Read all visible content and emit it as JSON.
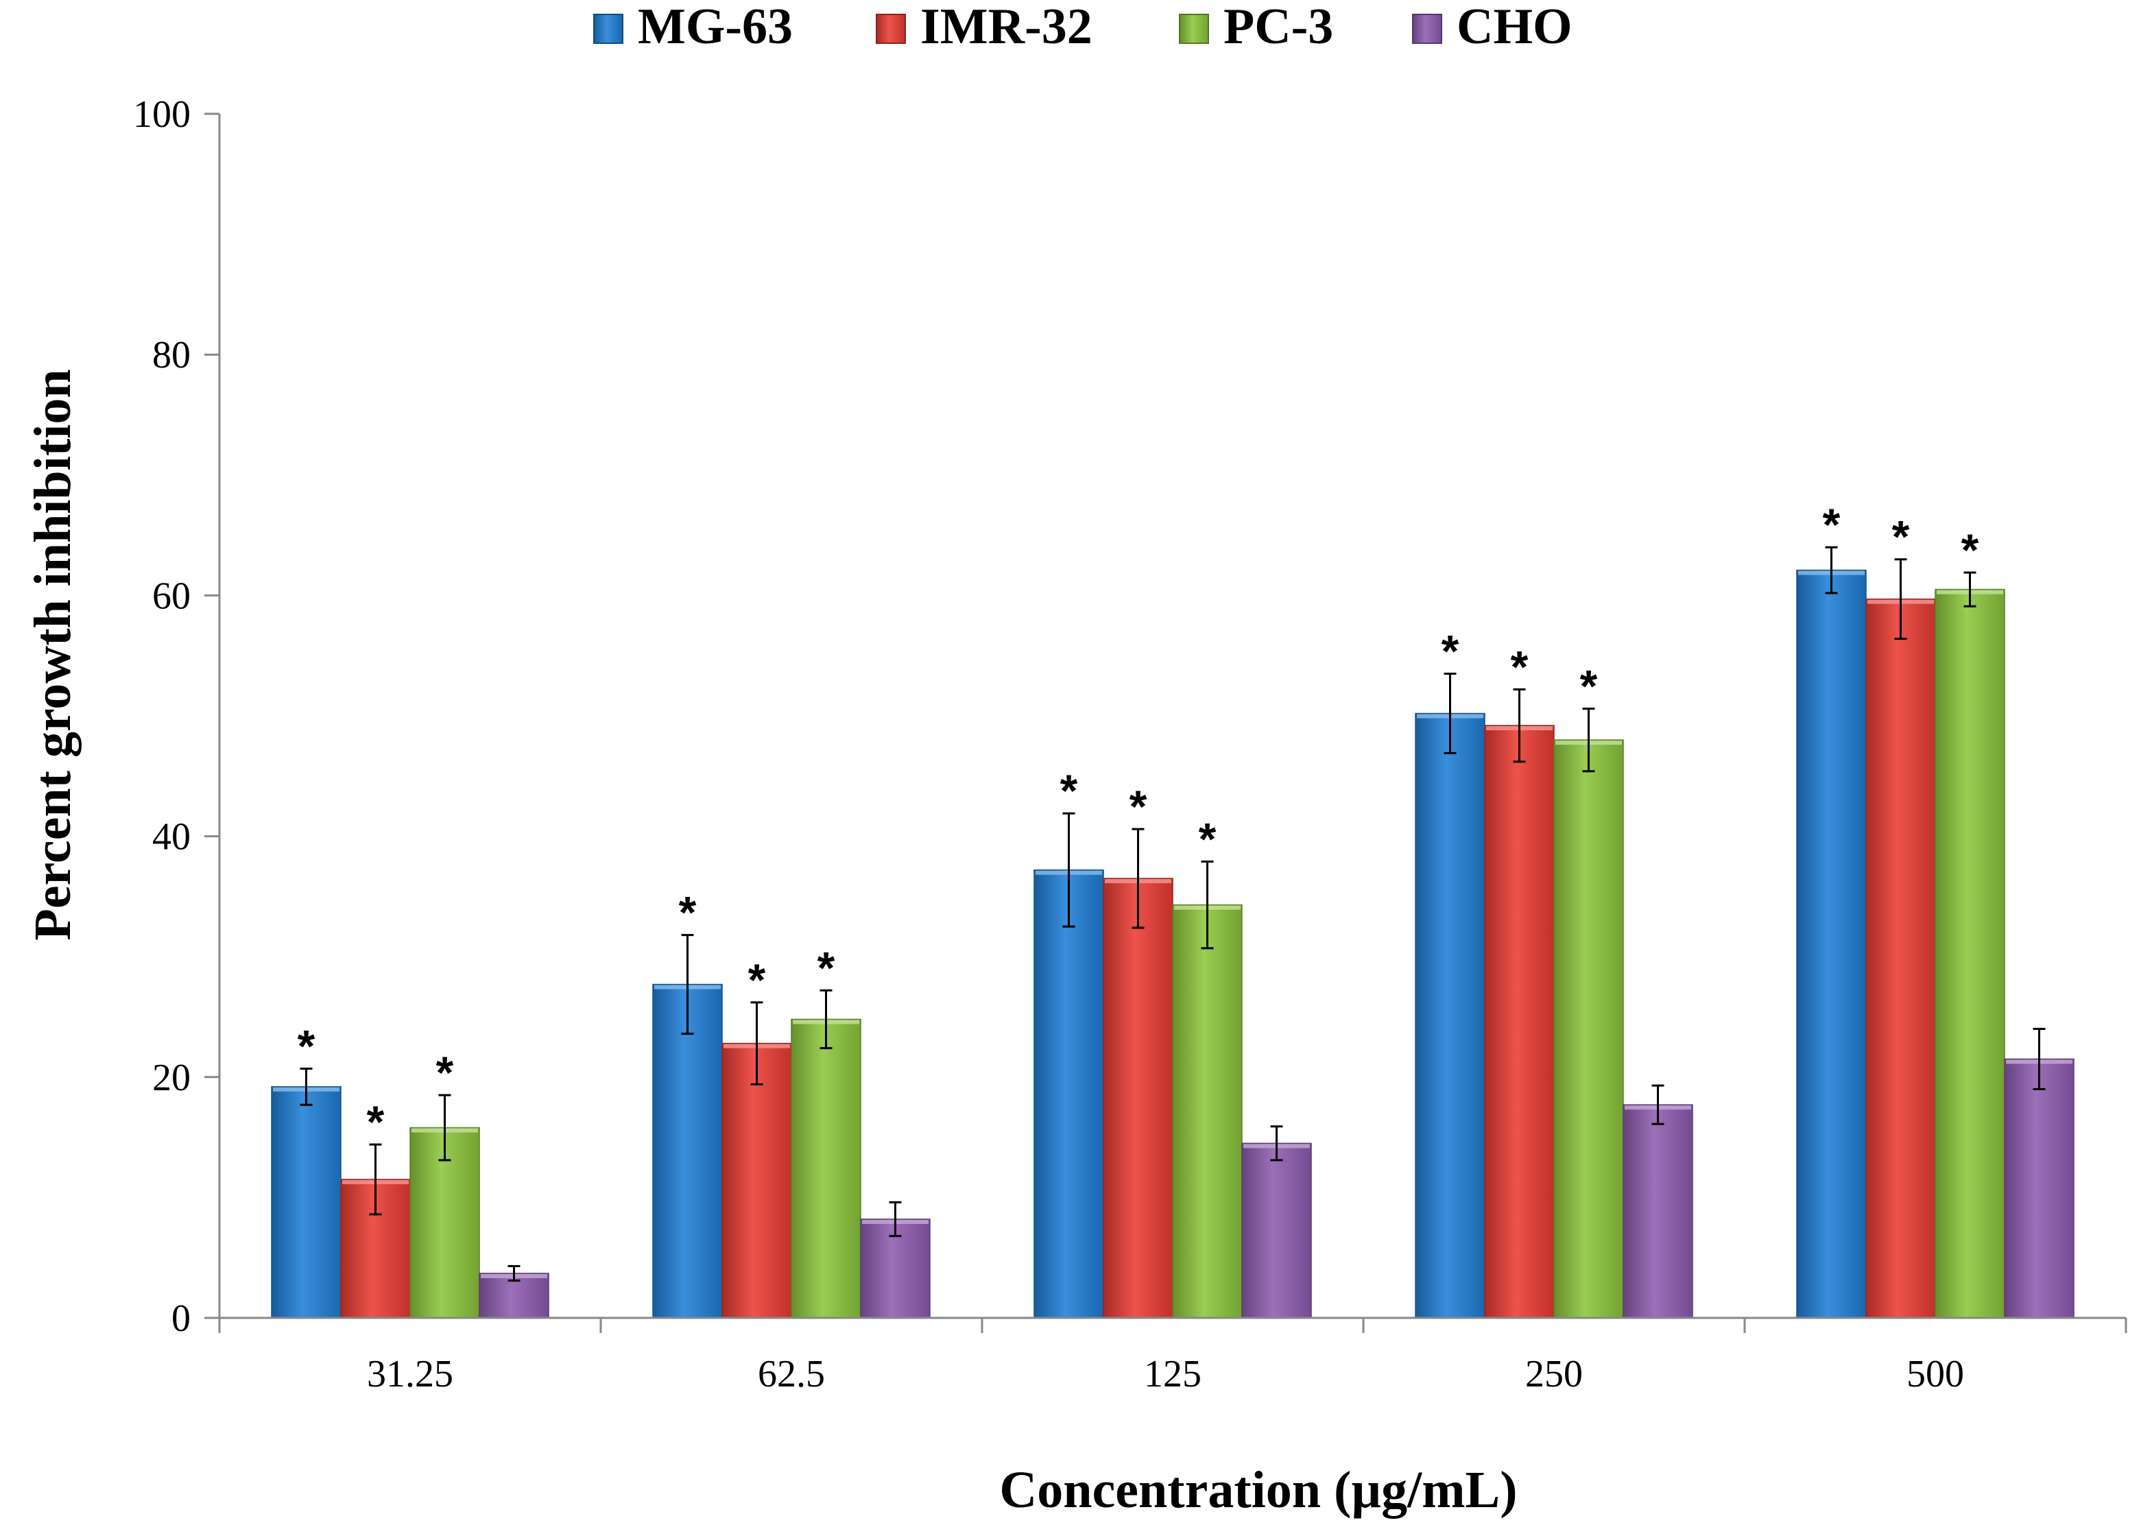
{
  "chart_data": {
    "type": "bar",
    "title": "",
    "xlabel": "Concentration (µg/mL)",
    "ylabel": "Percent growth inhibition",
    "ylim": [
      0,
      100
    ],
    "yticks": [
      "0",
      "20",
      "40",
      "60",
      "80",
      "100"
    ],
    "categories": [
      "31.25",
      "62.5",
      "125",
      "250",
      "500"
    ],
    "legend_position": "top-center",
    "series": [
      {
        "name": "MG-63",
        "color": "#1f7fd6",
        "values": [
          19.2,
          27.7,
          37.2,
          50.2,
          62.1
        ],
        "errors": [
          1.5,
          4.1,
          4.7,
          3.3,
          1.9
        ],
        "significance": [
          "*",
          "*",
          "*",
          "*",
          "*"
        ]
      },
      {
        "name": "IMR-32",
        "color": "#ea3b33",
        "values": [
          11.5,
          22.8,
          36.5,
          49.2,
          59.7
        ],
        "errors": [
          2.9,
          3.4,
          4.1,
          3.0,
          3.3
        ],
        "significance": [
          "*",
          "*",
          "*",
          "*",
          "*"
        ]
      },
      {
        "name": "PC-3",
        "color": "#8cc63c",
        "values": [
          15.8,
          24.8,
          34.3,
          48.0,
          60.5
        ],
        "errors": [
          2.7,
          2.4,
          3.6,
          2.6,
          1.4
        ],
        "significance": [
          "*",
          "*",
          "*",
          "*",
          "*"
        ]
      },
      {
        "name": "CHO",
        "color": "#8e5cb0",
        "values": [
          3.7,
          8.2,
          14.5,
          17.7,
          21.5
        ],
        "errors": [
          0.6,
          1.4,
          1.4,
          1.6,
          2.5
        ],
        "significance": [
          "",
          "",
          "",
          "",
          ""
        ]
      }
    ]
  }
}
